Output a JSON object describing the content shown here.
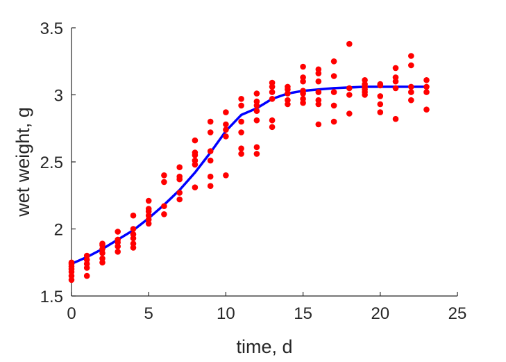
{
  "chart_data": {
    "type": "scatter",
    "title": "",
    "xlabel": "time, d",
    "ylabel": "wet weight, g",
    "xlim": [
      0,
      25
    ],
    "ylim": [
      1.5,
      3.5
    ],
    "xticks": [
      "0",
      "5",
      "10",
      "15",
      "20",
      "25"
    ],
    "yticks": [
      "1.5",
      "2",
      "2.5",
      "3",
      "3.5"
    ],
    "grid": false,
    "legend": "none",
    "series": [
      {
        "kind": "points",
        "color": "#ff0000",
        "points": [
          [
            0,
            1.62
          ],
          [
            0,
            1.65
          ],
          [
            0,
            1.68
          ],
          [
            0,
            1.7
          ],
          [
            0,
            1.72
          ],
          [
            0,
            1.74
          ],
          [
            0,
            1.75
          ],
          [
            1,
            1.65
          ],
          [
            1,
            1.71
          ],
          [
            1,
            1.74
          ],
          [
            1,
            1.77
          ],
          [
            1,
            1.8
          ],
          [
            2,
            1.75
          ],
          [
            2,
            1.78
          ],
          [
            2,
            1.82
          ],
          [
            2,
            1.85
          ],
          [
            2,
            1.88
          ],
          [
            2,
            1.89
          ],
          [
            3,
            1.83
          ],
          [
            3,
            1.87
          ],
          [
            3,
            1.9
          ],
          [
            3,
            1.92
          ],
          [
            3,
            1.98
          ],
          [
            4,
            1.86
          ],
          [
            4,
            1.89
          ],
          [
            4,
            1.93
          ],
          [
            4,
            1.96
          ],
          [
            4,
            2.0
          ],
          [
            4,
            2.1
          ],
          [
            5,
            2.04
          ],
          [
            5,
            2.07
          ],
          [
            5,
            2.1
          ],
          [
            5,
            2.13
          ],
          [
            5,
            2.15
          ],
          [
            5,
            2.21
          ],
          [
            6,
            2.11
          ],
          [
            6,
            2.17
          ],
          [
            6,
            2.35
          ],
          [
            6,
            2.4
          ],
          [
            7,
            2.22
          ],
          [
            7,
            2.27
          ],
          [
            7,
            2.37
          ],
          [
            7,
            2.39
          ],
          [
            7,
            2.46
          ],
          [
            8,
            2.31
          ],
          [
            8,
            2.48
          ],
          [
            8,
            2.51
          ],
          [
            8,
            2.55
          ],
          [
            8,
            2.57
          ],
          [
            8,
            2.66
          ],
          [
            9,
            2.32
          ],
          [
            9,
            2.39
          ],
          [
            9,
            2.51
          ],
          [
            9,
            2.58
          ],
          [
            9,
            2.72
          ],
          [
            9,
            2.8
          ],
          [
            10,
            2.4
          ],
          [
            10,
            2.69
          ],
          [
            10,
            2.74
          ],
          [
            10,
            2.78
          ],
          [
            10,
            2.87
          ],
          [
            11,
            2.56
          ],
          [
            11,
            2.6
          ],
          [
            11,
            2.72
          ],
          [
            11,
            2.8
          ],
          [
            11,
            2.92
          ],
          [
            11,
            2.97
          ],
          [
            12,
            2.56
          ],
          [
            12,
            2.61
          ],
          [
            12,
            2.81
          ],
          [
            12,
            2.88
          ],
          [
            12,
            2.92
          ],
          [
            12,
            2.95
          ],
          [
            12,
            3.01
          ],
          [
            13,
            2.76
          ],
          [
            13,
            2.81
          ],
          [
            13,
            2.97
          ],
          [
            13,
            3.02
          ],
          [
            13,
            3.06
          ],
          [
            13,
            3.09
          ],
          [
            14,
            2.93
          ],
          [
            14,
            2.96
          ],
          [
            14,
            3.01
          ],
          [
            14,
            3.04
          ],
          [
            14,
            3.06
          ],
          [
            15,
            2.94
          ],
          [
            15,
            2.97
          ],
          [
            15,
            3.01
          ],
          [
            15,
            3.03
          ],
          [
            15,
            3.1
          ],
          [
            15,
            3.13
          ],
          [
            15,
            3.21
          ],
          [
            16,
            2.78
          ],
          [
            16,
            2.93
          ],
          [
            16,
            2.96
          ],
          [
            16,
            3.02
          ],
          [
            16,
            3.1
          ],
          [
            16,
            3.16
          ],
          [
            16,
            3.19
          ],
          [
            17,
            2.8
          ],
          [
            17,
            2.92
          ],
          [
            17,
            3.02
          ],
          [
            17,
            3.14
          ],
          [
            17,
            3.25
          ],
          [
            18,
            2.86
          ],
          [
            18,
            3.0
          ],
          [
            18,
            3.05
          ],
          [
            18,
            3.38
          ],
          [
            19,
            3.0
          ],
          [
            19,
            3.02
          ],
          [
            19,
            3.04
          ],
          [
            19,
            3.06
          ],
          [
            19,
            3.08
          ],
          [
            19,
            3.11
          ],
          [
            20,
            2.87
          ],
          [
            20,
            2.93
          ],
          [
            20,
            2.99
          ],
          [
            20,
            3.07
          ],
          [
            20,
            3.08
          ],
          [
            21,
            2.82
          ],
          [
            21,
            3.05
          ],
          [
            21,
            3.1
          ],
          [
            21,
            3.13
          ],
          [
            21,
            3.2
          ],
          [
            22,
            2.96
          ],
          [
            22,
            3.02
          ],
          [
            22,
            3.06
          ],
          [
            22,
            3.22
          ],
          [
            22,
            3.29
          ],
          [
            23,
            2.89
          ],
          [
            23,
            3.02
          ],
          [
            23,
            3.06
          ],
          [
            23,
            3.11
          ]
        ]
      },
      {
        "kind": "curve",
        "color": "#0000ff",
        "points": [
          [
            0,
            1.74
          ],
          [
            1,
            1.79
          ],
          [
            2,
            1.85
          ],
          [
            3,
            1.92
          ],
          [
            4,
            1.99
          ],
          [
            5,
            2.08
          ],
          [
            6,
            2.18
          ],
          [
            7,
            2.29
          ],
          [
            8,
            2.42
          ],
          [
            9,
            2.57
          ],
          [
            10,
            2.73
          ],
          [
            11,
            2.85
          ],
          [
            12,
            2.9
          ],
          [
            13,
            2.97
          ],
          [
            14,
            3.01
          ],
          [
            15,
            3.03
          ],
          [
            16,
            3.04
          ],
          [
            17,
            3.05
          ],
          [
            18,
            3.055
          ],
          [
            19,
            3.06
          ],
          [
            20,
            3.06
          ],
          [
            21,
            3.06
          ],
          [
            22,
            3.06
          ],
          [
            23,
            3.06
          ]
        ]
      }
    ]
  }
}
